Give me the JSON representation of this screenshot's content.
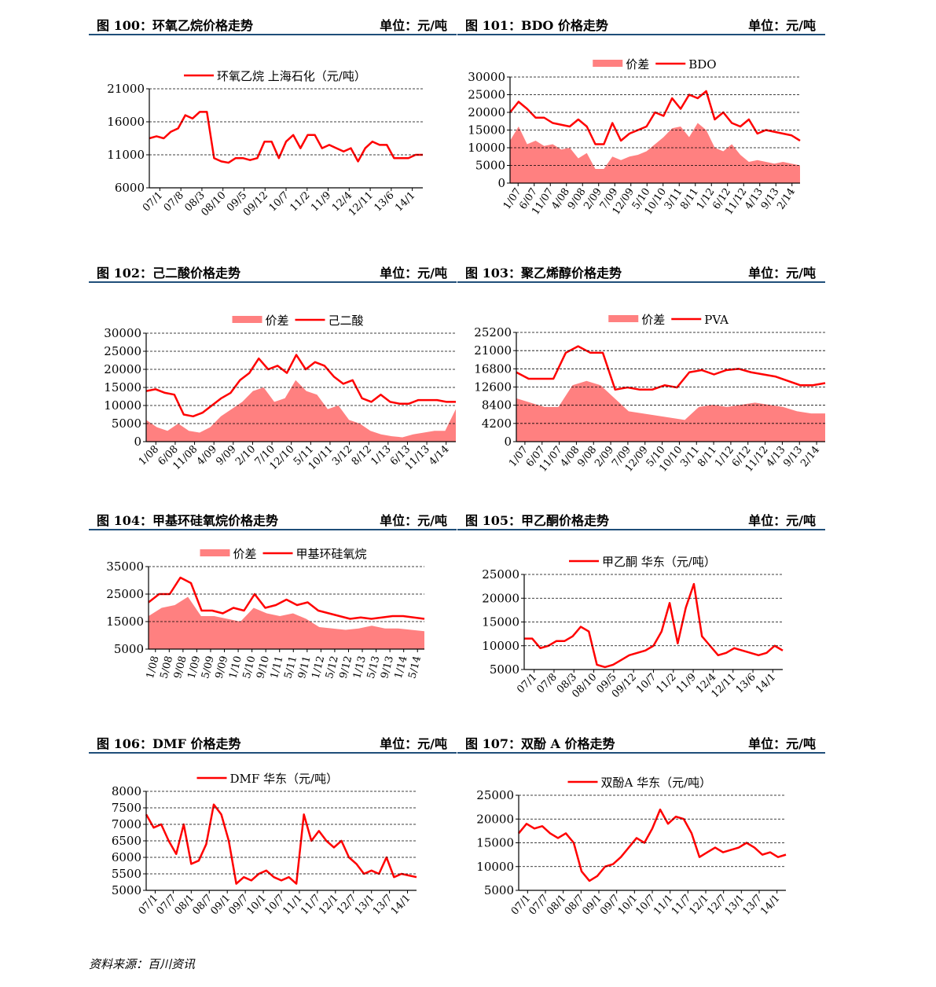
{
  "footer": {
    "source": "资料来源：百川资讯"
  },
  "colors": {
    "line": "#ff0000",
    "area": "#ff8080",
    "header_rule": "#1f4e79"
  },
  "panels": [
    {
      "title": "图 100：环氧乙烷价格走势",
      "unit": "单位：元/吨"
    },
    {
      "title": "图 101：BDO 价格走势",
      "unit": "单位：元/吨"
    },
    {
      "title": "图 102：己二酸价格走势",
      "unit": "单位：元/吨"
    },
    {
      "title": "图 103：聚乙烯醇价格走势",
      "unit": "单位：元/吨"
    },
    {
      "title": "图 104：甲基环硅氧烷价格走势",
      "unit": "单位：元/吨"
    },
    {
      "title": "图 105：甲乙酮价格走势",
      "unit": "单位：元/吨"
    },
    {
      "title": "图 106：DMF 价格走势",
      "unit": "单位：元/吨"
    },
    {
      "title": "图 107：双酚 A 价格走势",
      "unit": "单位：元/吨"
    }
  ],
  "chart_data": [
    {
      "type": "line",
      "ylim": [
        6000,
        21000
      ],
      "yticks": [
        6000,
        11000,
        16000,
        21000
      ],
      "grid": true,
      "legend": "top-center",
      "xticks": [
        "07/1",
        "07/8",
        "08/3",
        "08/10",
        "09/5",
        "09/12",
        "10/7",
        "11/2",
        "11/9",
        "12/4",
        "12/11",
        "13/6",
        "14/1"
      ],
      "series": [
        {
          "name": "环氧乙烷 上海石化（元/吨）",
          "kind": "line",
          "values": [
            13500,
            13800,
            13500,
            14500,
            15000,
            17000,
            16500,
            17500,
            17500,
            10500,
            10000,
            9800,
            10500,
            10500,
            10200,
            10500,
            13000,
            13000,
            10500,
            13000,
            14000,
            12000,
            14000,
            14000,
            12000,
            12500,
            12000,
            11500,
            12000,
            10000,
            12000,
            13000,
            12500,
            12500,
            10500,
            10500,
            10500,
            11000,
            11000
          ]
        }
      ]
    },
    {
      "type": "line+area",
      "ylim": [
        0,
        30000
      ],
      "yticks": [
        0,
        5000,
        10000,
        15000,
        20000,
        25000,
        30000
      ],
      "grid": true,
      "legend": "top-center",
      "xticks": [
        "1/07",
        "6/07",
        "11/07",
        "4/08",
        "9/08",
        "2/09",
        "7/09",
        "12/09",
        "5/10",
        "10/10",
        "3/11",
        "8/11",
        "1/12",
        "6/12",
        "11/12",
        "4/13",
        "9/13",
        "2/14"
      ],
      "series": [
        {
          "name": "价差",
          "kind": "area",
          "values": [
            12000,
            16000,
            11000,
            12000,
            10500,
            11000,
            9500,
            10000,
            7000,
            8500,
            4000,
            4000,
            7500,
            6500,
            7500,
            8000,
            9000,
            11000,
            13000,
            15500,
            16000,
            13000,
            17000,
            15000,
            10000,
            9000,
            11000,
            8000,
            6000,
            6500,
            6000,
            5500,
            6000,
            5500,
            5000
          ]
        },
        {
          "name": "BDO",
          "kind": "line",
          "values": [
            20000,
            23000,
            21000,
            18500,
            18500,
            17000,
            16500,
            16000,
            18000,
            16000,
            11000,
            11000,
            17000,
            12000,
            14000,
            15000,
            16000,
            20000,
            19000,
            24000,
            21000,
            25000,
            24000,
            26000,
            18000,
            20000,
            17000,
            16000,
            18000,
            14000,
            15000,
            14500,
            14000,
            13500,
            12000
          ]
        }
      ]
    },
    {
      "type": "line+area",
      "ylim": [
        0,
        30000
      ],
      "yticks": [
        0,
        5000,
        10000,
        15000,
        20000,
        25000,
        30000
      ],
      "grid": true,
      "legend": "top-center",
      "xticks": [
        "1/08",
        "6/08",
        "11/08",
        "4/09",
        "9/09",
        "2/10",
        "7/10",
        "12/10",
        "5/11",
        "10/11",
        "3/12",
        "8/12",
        "1/13",
        "6/13",
        "11/13",
        "4/14"
      ],
      "series": [
        {
          "name": "价差",
          "kind": "area",
          "values": [
            6000,
            4000,
            3000,
            5000,
            3000,
            2500,
            4000,
            7000,
            9000,
            11000,
            14000,
            15000,
            11000,
            12000,
            17000,
            14000,
            13000,
            9000,
            10000,
            6000,
            5000,
            3000,
            2000,
            1500,
            1200,
            2000,
            2500,
            3000,
            3000,
            9000
          ]
        },
        {
          "name": "己二酸",
          "kind": "line",
          "values": [
            14000,
            14500,
            13500,
            13000,
            7500,
            7000,
            8000,
            10000,
            12000,
            13500,
            17000,
            19000,
            23000,
            20000,
            21000,
            19000,
            24000,
            20000,
            22000,
            21000,
            18000,
            16000,
            17000,
            12000,
            11000,
            13000,
            11000,
            10500,
            10500,
            11500,
            11500,
            11500,
            11000,
            11000
          ]
        }
      ]
    },
    {
      "type": "line+area",
      "ylim": [
        0,
        25200
      ],
      "yticks": [
        0,
        4200,
        8400,
        12600,
        16800,
        21000,
        25200
      ],
      "grid": true,
      "legend": "top-center",
      "xticks": [
        "1/07",
        "6/07",
        "11/07",
        "4/08",
        "9/08",
        "2/09",
        "7/09",
        "12/09",
        "5/10",
        "10/10",
        "3/11",
        "8/11",
        "1/12",
        "6/12",
        "11/12",
        "4/13",
        "9/13",
        "2/14"
      ],
      "series": [
        {
          "name": "价差",
          "kind": "area",
          "values": [
            10000,
            9000,
            8000,
            8000,
            13000,
            14000,
            13000,
            10000,
            7000,
            6500,
            6000,
            5500,
            5000,
            8000,
            8500,
            8000,
            8500,
            9000,
            8500,
            8000,
            7000,
            6500,
            6500
          ]
        },
        {
          "name": "PVA",
          "kind": "line",
          "values": [
            16000,
            14500,
            14500,
            14500,
            20500,
            22000,
            20500,
            20500,
            12000,
            12500,
            12000,
            12000,
            13000,
            12500,
            16000,
            16500,
            15500,
            16500,
            16800,
            16000,
            15500,
            15000,
            14000,
            13000,
            13000,
            13500
          ]
        }
      ]
    },
    {
      "type": "line+area",
      "ylim": [
        5000,
        35000
      ],
      "yticks": [
        5000,
        15000,
        25000,
        35000
      ],
      "grid": true,
      "legend": "top-center",
      "xticks": [
        "1/08",
        "5/08",
        "9/08",
        "1/09",
        "5/09",
        "9/09",
        "1/10",
        "5/10",
        "9/10",
        "1/11",
        "5/11",
        "9/11",
        "1/12",
        "5/12",
        "9/12",
        "1/13",
        "5/13",
        "9/13",
        "1/14",
        "5/14"
      ],
      "series": [
        {
          "name": "价差",
          "kind": "area",
          "values": [
            17000,
            20000,
            21000,
            24000,
            17000,
            17000,
            16000,
            15000,
            20000,
            18000,
            17000,
            18000,
            16000,
            13000,
            12500,
            12000,
            12500,
            13500,
            12500,
            12500,
            12000,
            11500
          ]
        },
        {
          "name": "甲基环硅氧烷",
          "kind": "line",
          "values": [
            22000,
            25000,
            25000,
            31000,
            29000,
            19000,
            19000,
            18000,
            20000,
            19000,
            25000,
            20000,
            21000,
            23000,
            21000,
            22000,
            19000,
            18000,
            17000,
            16000,
            16500,
            16000,
            16500,
            17000,
            17000,
            16500,
            16000
          ]
        }
      ]
    },
    {
      "type": "line",
      "ylim": [
        5000,
        25000
      ],
      "yticks": [
        5000,
        10000,
        15000,
        20000,
        25000
      ],
      "grid": true,
      "legend": "top-center",
      "xticks": [
        "07/1",
        "07/8",
        "08/3",
        "08/10",
        "09/5",
        "09/12",
        "10/7",
        "11/2",
        "11/9",
        "12/4",
        "12/11",
        "13/6",
        "14/1"
      ],
      "series": [
        {
          "name": "甲乙酮 华东（元/吨）",
          "kind": "line",
          "values": [
            11500,
            11500,
            9500,
            10000,
            11000,
            11000,
            12000,
            14000,
            13000,
            6000,
            5500,
            6000,
            7000,
            8000,
            8500,
            9000,
            10000,
            13000,
            19000,
            10500,
            18000,
            23000,
            12000,
            10000,
            8000,
            8500,
            9500,
            9000,
            8500,
            8000,
            8500,
            10000,
            9000
          ]
        }
      ]
    },
    {
      "type": "line",
      "ylim": [
        5000,
        8000
      ],
      "yticks": [
        5000,
        5500,
        6000,
        6500,
        7000,
        7500,
        8000
      ],
      "grid": true,
      "legend": "top-center",
      "xticks": [
        "07/1",
        "07/7",
        "08/1",
        "08/7",
        "09/1",
        "09/7",
        "10/1",
        "10/7",
        "11/1",
        "11/7",
        "12/1",
        "12/7",
        "13/1",
        "13/7",
        "14/1"
      ],
      "series": [
        {
          "name": "DMF 华东（元/吨）",
          "kind": "line",
          "values": [
            7300,
            6900,
            7000,
            6500,
            6100,
            7000,
            5800,
            5900,
            6400,
            7600,
            7300,
            6500,
            5200,
            5400,
            5300,
            5500,
            5600,
            5400,
            5300,
            5400,
            5200,
            7300,
            6500,
            6800,
            6500,
            6300,
            6500,
            6000,
            5800,
            5500,
            5600,
            5500,
            6000,
            5400,
            5500,
            5450,
            5400
          ]
        }
      ]
    },
    {
      "type": "line",
      "ylim": [
        5000,
        25000
      ],
      "yticks": [
        5000,
        10000,
        15000,
        20000,
        25000
      ],
      "grid": true,
      "legend": "top-center",
      "xticks": [
        "07/1",
        "07/7",
        "08/1",
        "08/7",
        "09/1",
        "09/7",
        "10/1",
        "10/7",
        "11/1",
        "11/7",
        "12/1",
        "12/7",
        "13/1",
        "13/7",
        "14/1"
      ],
      "series": [
        {
          "name": "双酚A 华东（元/吨）",
          "kind": "line",
          "values": [
            17000,
            19000,
            18000,
            18500,
            17000,
            16000,
            17000,
            15000,
            9000,
            7000,
            8000,
            10000,
            10500,
            12000,
            14000,
            16000,
            15000,
            18000,
            22000,
            19000,
            20500,
            20000,
            17000,
            12000,
            13000,
            14000,
            13000,
            13500,
            14000,
            15000,
            14000,
            12500,
            13000,
            12000,
            12500
          ]
        }
      ]
    }
  ]
}
